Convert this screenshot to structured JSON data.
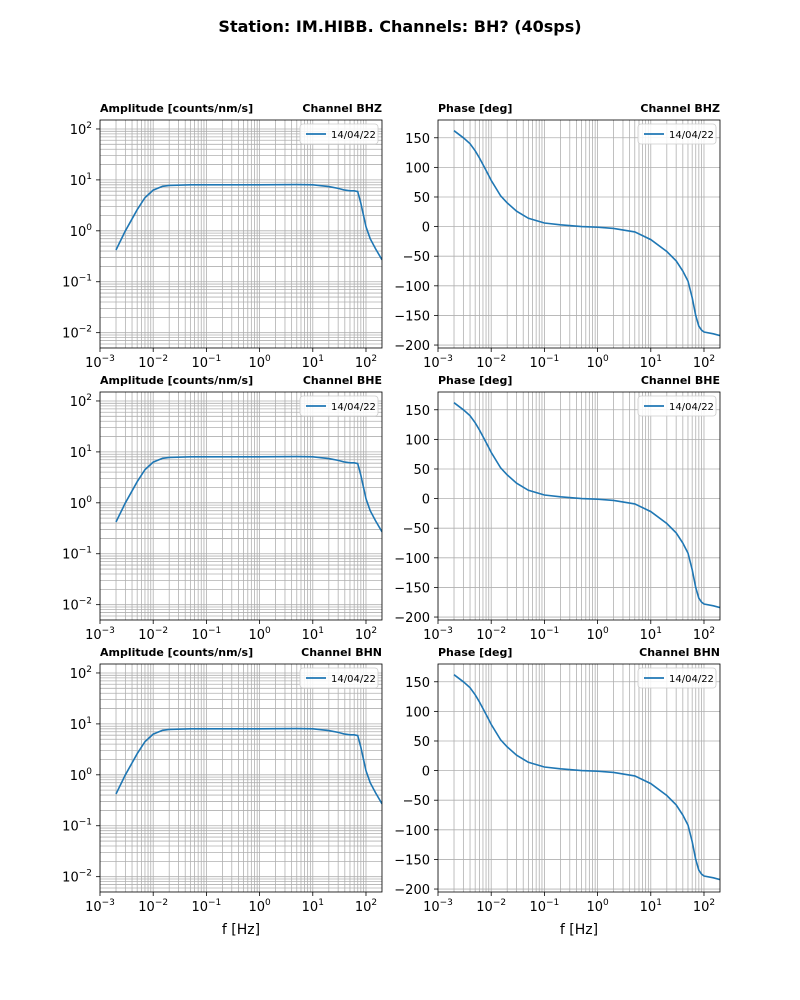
{
  "figure": {
    "title": "Station: IM.HIBB. Channels: BH? (40sps)"
  },
  "chart_data": [
    {
      "type": "line",
      "kind": "amplitude",
      "title": "Amplitude [counts/nm/s]",
      "channel": "Channel BHZ",
      "xscale": "log",
      "yscale": "log",
      "xlim": [
        0.001,
        200
      ],
      "ylim": [
        0.005,
        150
      ],
      "xticks": [
        0.001,
        0.01,
        0.1,
        1,
        10,
        100
      ],
      "yticks": [
        0.01,
        0.1,
        1,
        10,
        100
      ],
      "xlabel": "",
      "grid": true,
      "legend": "top-right",
      "series": [
        {
          "name": "14/04/22",
          "color": "#1f77b4",
          "x": [
            0.002,
            0.003,
            0.005,
            0.007,
            0.01,
            0.015,
            0.02,
            0.05,
            0.1,
            1,
            5,
            10,
            20,
            30,
            40,
            50,
            60,
            70,
            80,
            100,
            120,
            150,
            200
          ],
          "y": [
            0.42,
            1.0,
            2.6,
            4.5,
            6.3,
            7.5,
            7.8,
            8.0,
            8.0,
            8.0,
            8.1,
            8.0,
            7.4,
            6.8,
            6.3,
            6.1,
            6.1,
            5.9,
            3.5,
            1.2,
            0.7,
            0.45,
            0.27
          ]
        }
      ]
    },
    {
      "type": "line",
      "kind": "phase",
      "title": "Phase [deg]",
      "channel": "Channel BHZ",
      "xscale": "log",
      "yscale": "linear",
      "xlim": [
        0.001,
        200
      ],
      "ylim": [
        -205,
        180
      ],
      "xticks": [
        0.001,
        0.01,
        0.1,
        1,
        10,
        100
      ],
      "yticks": [
        150,
        100,
        50,
        0,
        -50,
        -100,
        -150,
        -200
      ],
      "xlabel": "",
      "grid": true,
      "legend": "top-right",
      "series": [
        {
          "name": "14/04/22",
          "color": "#1f77b4",
          "x": [
            0.002,
            0.003,
            0.004,
            0.005,
            0.006,
            0.008,
            0.01,
            0.015,
            0.02,
            0.03,
            0.05,
            0.1,
            0.2,
            0.5,
            1,
            2,
            5,
            10,
            20,
            30,
            40,
            50,
            60,
            70,
            80,
            90,
            100,
            150,
            200
          ],
          "y": [
            162,
            150,
            140,
            128,
            116,
            95,
            78,
            52,
            40,
            26,
            14,
            6,
            3,
            0,
            -1,
            -3,
            -9,
            -22,
            -42,
            -58,
            -75,
            -92,
            -120,
            -150,
            -168,
            -175,
            -178,
            -181,
            -184
          ]
        }
      ]
    },
    {
      "type": "line",
      "kind": "amplitude",
      "title": "Amplitude [counts/nm/s]",
      "channel": "Channel BHE",
      "xscale": "log",
      "yscale": "log",
      "xlim": [
        0.001,
        200
      ],
      "ylim": [
        0.005,
        150
      ],
      "xticks": [
        0.001,
        0.01,
        0.1,
        1,
        10,
        100
      ],
      "yticks": [
        0.01,
        0.1,
        1,
        10,
        100
      ],
      "xlabel": "",
      "grid": true,
      "legend": "top-right",
      "series": [
        {
          "name": "14/04/22",
          "color": "#1f77b4",
          "x": [
            0.002,
            0.003,
            0.005,
            0.007,
            0.01,
            0.015,
            0.02,
            0.05,
            0.1,
            1,
            5,
            10,
            20,
            30,
            40,
            50,
            60,
            70,
            80,
            100,
            120,
            150,
            200
          ],
          "y": [
            0.42,
            1.0,
            2.6,
            4.5,
            6.3,
            7.5,
            7.8,
            8.0,
            8.0,
            8.0,
            8.1,
            8.0,
            7.4,
            6.8,
            6.3,
            6.1,
            6.1,
            5.9,
            3.5,
            1.2,
            0.7,
            0.45,
            0.27
          ]
        }
      ]
    },
    {
      "type": "line",
      "kind": "phase",
      "title": "Phase [deg]",
      "channel": "Channel BHE",
      "xscale": "log",
      "yscale": "linear",
      "xlim": [
        0.001,
        200
      ],
      "ylim": [
        -205,
        180
      ],
      "xticks": [
        0.001,
        0.01,
        0.1,
        1,
        10,
        100
      ],
      "yticks": [
        150,
        100,
        50,
        0,
        -50,
        -100,
        -150,
        -200
      ],
      "xlabel": "",
      "grid": true,
      "legend": "top-right",
      "series": [
        {
          "name": "14/04/22",
          "color": "#1f77b4",
          "x": [
            0.002,
            0.003,
            0.004,
            0.005,
            0.006,
            0.008,
            0.01,
            0.015,
            0.02,
            0.03,
            0.05,
            0.1,
            0.2,
            0.5,
            1,
            2,
            5,
            10,
            20,
            30,
            40,
            50,
            60,
            70,
            80,
            90,
            100,
            150,
            200
          ],
          "y": [
            162,
            150,
            140,
            128,
            116,
            95,
            78,
            52,
            40,
            26,
            14,
            6,
            3,
            0,
            -1,
            -3,
            -9,
            -22,
            -42,
            -58,
            -75,
            -92,
            -120,
            -150,
            -168,
            -175,
            -178,
            -181,
            -184
          ]
        }
      ]
    },
    {
      "type": "line",
      "kind": "amplitude",
      "title": "Amplitude [counts/nm/s]",
      "channel": "Channel BHN",
      "xscale": "log",
      "yscale": "log",
      "xlim": [
        0.001,
        200
      ],
      "ylim": [
        0.005,
        150
      ],
      "xticks": [
        0.001,
        0.01,
        0.1,
        1,
        10,
        100
      ],
      "yticks": [
        0.01,
        0.1,
        1,
        10,
        100
      ],
      "xlabel": "f [Hz]",
      "grid": true,
      "legend": "top-right",
      "series": [
        {
          "name": "14/04/22",
          "color": "#1f77b4",
          "x": [
            0.002,
            0.003,
            0.005,
            0.007,
            0.01,
            0.015,
            0.02,
            0.05,
            0.1,
            1,
            5,
            10,
            20,
            30,
            40,
            50,
            60,
            70,
            80,
            100,
            120,
            150,
            200
          ],
          "y": [
            0.42,
            1.0,
            2.6,
            4.5,
            6.3,
            7.5,
            7.8,
            8.0,
            8.0,
            8.0,
            8.1,
            8.0,
            7.4,
            6.8,
            6.3,
            6.1,
            6.1,
            5.9,
            3.5,
            1.2,
            0.7,
            0.45,
            0.27
          ]
        }
      ]
    },
    {
      "type": "line",
      "kind": "phase",
      "title": "Phase [deg]",
      "channel": "Channel BHN",
      "xscale": "log",
      "yscale": "linear",
      "xlim": [
        0.001,
        200
      ],
      "ylim": [
        -205,
        180
      ],
      "xticks": [
        0.001,
        0.01,
        0.1,
        1,
        10,
        100
      ],
      "yticks": [
        150,
        100,
        50,
        0,
        -50,
        -100,
        -150,
        -200
      ],
      "xlabel": "f [Hz]",
      "grid": true,
      "legend": "top-right",
      "series": [
        {
          "name": "14/04/22",
          "color": "#1f77b4",
          "x": [
            0.002,
            0.003,
            0.004,
            0.005,
            0.006,
            0.008,
            0.01,
            0.015,
            0.02,
            0.03,
            0.05,
            0.1,
            0.2,
            0.5,
            1,
            2,
            5,
            10,
            20,
            30,
            40,
            50,
            60,
            70,
            80,
            90,
            100,
            150,
            200
          ],
          "y": [
            162,
            150,
            140,
            128,
            116,
            95,
            78,
            52,
            40,
            26,
            14,
            6,
            3,
            0,
            -1,
            -3,
            -9,
            -22,
            -42,
            -58,
            -75,
            -92,
            -120,
            -150,
            -168,
            -175,
            -178,
            -181,
            -184
          ]
        }
      ]
    }
  ]
}
